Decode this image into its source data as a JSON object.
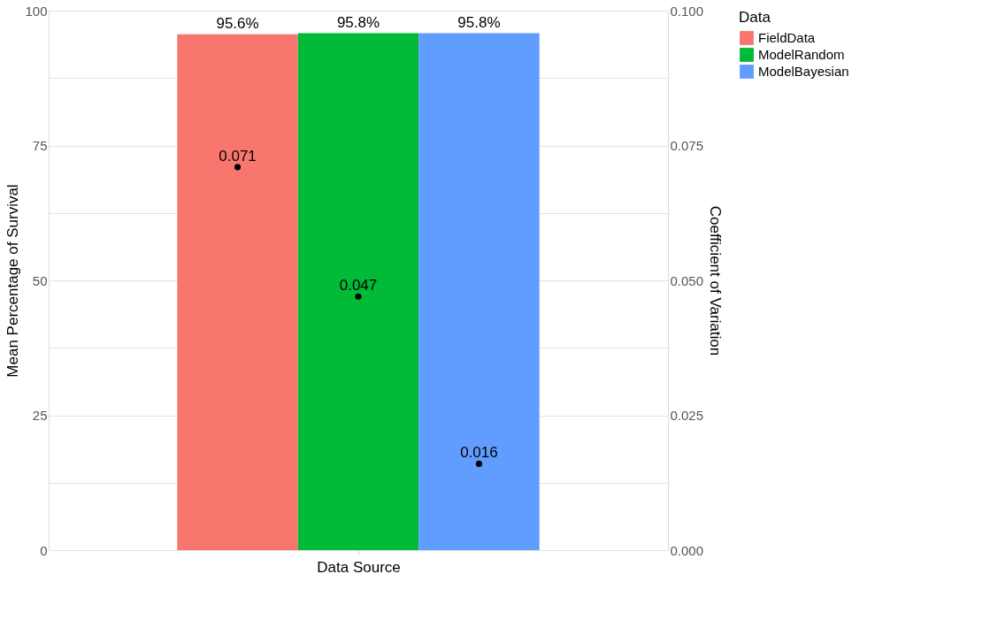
{
  "chart_data": {
    "type": "bar",
    "categories": [
      null
    ],
    "xlabel": "Data Source",
    "ylabel": "Mean Percentage of Survival",
    "y2label": "Coefficient of Variation",
    "legend_title": "Data",
    "legend": "right",
    "grid": "y",
    "ylim": [
      0,
      100
    ],
    "yticks": [
      0,
      {
        "value": 12.5,
        "label": null
      },
      25,
      {
        "value": 37.5,
        "label": null
      },
      50,
      {
        "value": 62.5,
        "label": null
      },
      75,
      {
        "value": 87.5,
        "label": null
      },
      100
    ],
    "y2lim": [
      0,
      0.1
    ],
    "y2ticks": [
      {
        "value": 0,
        "label": "0.000"
      },
      {
        "value": 0.025,
        "label": "0.025"
      },
      {
        "value": 0.05,
        "label": "0.050"
      },
      {
        "value": 0.075,
        "label": "0.075"
      },
      {
        "value": 0.1,
        "label": "0.100"
      }
    ],
    "series": [
      {
        "name": "FieldData",
        "color": "#f8766d",
        "values": [
          95.6
        ],
        "value_labels": [
          "95.6%"
        ]
      },
      {
        "name": "ModelRandom",
        "color": "#00ba38",
        "values": [
          95.8
        ],
        "value_labels": [
          "95.8%"
        ]
      },
      {
        "name": "ModelBayesian",
        "color": "#619cff",
        "values": [
          95.8
        ],
        "value_labels": [
          "95.8%"
        ]
      },
      {
        "type": "scatter",
        "axis": "y2",
        "color": "#000000",
        "marker": "circle",
        "values": [
          0.071
        ],
        "data_labels": true
      },
      {
        "type": "scatter",
        "axis": "y2",
        "color": "#000000",
        "marker": "circle",
        "values": [
          0.047
        ],
        "data_labels": true
      },
      {
        "type": "scatter",
        "axis": "y2",
        "color": "#000000",
        "marker": "circle",
        "values": [
          0.016
        ],
        "data_labels": true
      }
    ]
  }
}
